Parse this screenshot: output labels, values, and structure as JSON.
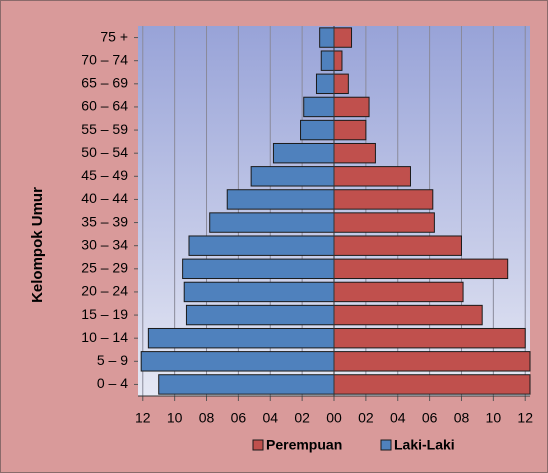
{
  "chart_data": {
    "type": "pyramid",
    "y_label": "Kelompok Umur",
    "categories": [
      "0 – 4",
      "5 – 9",
      "10 – 14",
      "15 – 19",
      "20 – 24",
      "25 – 29",
      "30 – 34",
      "35 – 39",
      "40 – 44",
      "45 – 49",
      "50 – 54",
      "55 – 59",
      "60 – 64",
      "65 – 69",
      "70 – 74",
      "75 +"
    ],
    "series": [
      {
        "name": "Perempuan",
        "color": "#c0504d",
        "values": [
          12.3,
          12.3,
          12.0,
          9.3,
          8.1,
          10.9,
          8.0,
          6.3,
          6.2,
          4.8,
          2.6,
          2.0,
          2.2,
          0.9,
          0.5,
          1.1
        ]
      },
      {
        "name": "Laki-Laki",
        "color": "#4f81bd",
        "values": [
          -11.0,
          -12.1,
          -11.65,
          -9.26,
          -9.4,
          -9.5,
          -9.1,
          -7.8,
          -6.7,
          -5.2,
          -3.8,
          -2.1,
          -1.9,
          -1.1,
          -0.8,
          -0.9
        ]
      }
    ],
    "xlim": [
      -12.3,
      12.3
    ],
    "xticks": [
      {
        "value": -12,
        "label": "12"
      },
      {
        "value": -10,
        "label": "10"
      },
      {
        "value": -8,
        "label": "08"
      },
      {
        "value": -6,
        "label": "06"
      },
      {
        "value": -4,
        "label": "04"
      },
      {
        "value": -2,
        "label": "02"
      },
      {
        "value": 0,
        "label": "00"
      },
      {
        "value": 2,
        "label": "02"
      },
      {
        "value": 4,
        "label": "04"
      },
      {
        "value": 6,
        "label": "06"
      },
      {
        "value": 8,
        "label": "08"
      },
      10,
      12
    ],
    "grid": true,
    "legend": "bottom"
  }
}
